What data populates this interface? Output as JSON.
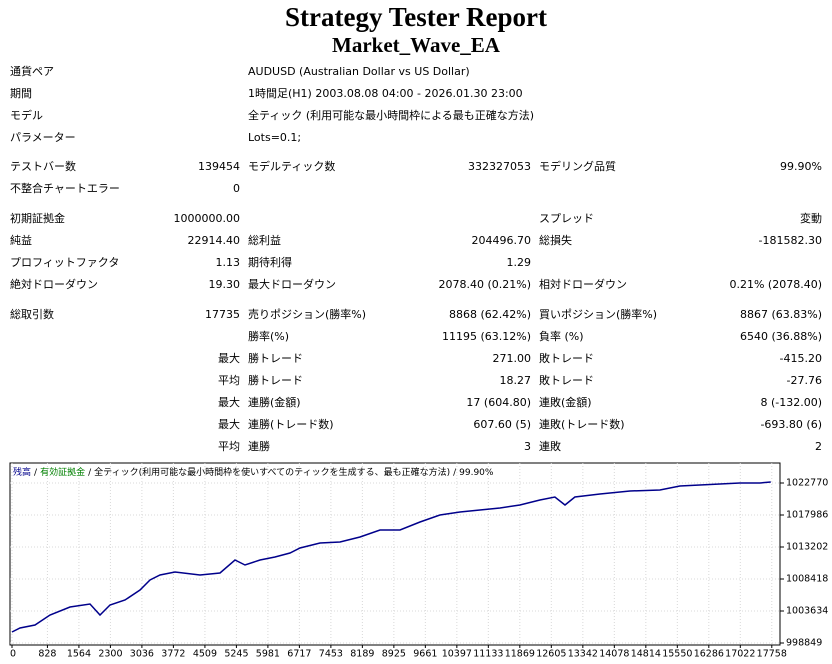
{
  "header": {
    "title": "Strategy Tester Report",
    "subtitle": "Market_Wave_EA"
  },
  "info": [
    {
      "label": "通貨ペア",
      "value": "AUDUSD (Australian Dollar vs US Dollar)"
    },
    {
      "label": "期間",
      "value": "1時間足(H1) 2003.08.08 04:00 - 2026.01.30 23:00"
    },
    {
      "label": "モデル",
      "value": "全ティック (利用可能な最小時間枠による最も正確な方法)"
    },
    {
      "label": "パラメーター",
      "value": "Lots=0.1;"
    }
  ],
  "stats": [
    [
      [
        "テストバー数",
        "139454",
        "モデルティック数",
        "332327053",
        "モデリング品質",
        "99.90%"
      ],
      [
        "不整合チャートエラー",
        "0",
        null,
        null,
        null,
        null
      ]
    ],
    [
      [
        "初期証拠金",
        "1000000.00",
        null,
        null,
        "スプレッド",
        "変動"
      ],
      [
        "純益",
        "22914.40",
        "総利益",
        "204496.70",
        "総損失",
        "-181582.30"
      ],
      [
        "プロフィットファクタ",
        "1.13",
        "期待利得",
        "1.29",
        null,
        null
      ],
      [
        "絶対ドローダウン",
        "19.30",
        "最大ドローダウン",
        "2078.40 (0.21%)",
        "相対ドローダウン",
        "0.21% (2078.40)"
      ]
    ],
    [
      [
        "総取引数",
        "17735",
        "売りポジション(勝率%)",
        "8868 (62.42%)",
        "買いポジション(勝率%)",
        "8867 (63.83%)"
      ],
      [
        null,
        null,
        "勝率(%)",
        "11195 (63.12%)",
        "負率 (%)",
        "6540 (36.88%)"
      ],
      [
        null,
        "最大",
        "勝トレード",
        "271.00",
        "敗トレード",
        "-415.20"
      ],
      [
        null,
        "平均",
        "勝トレード",
        "18.27",
        "敗トレード",
        "-27.76"
      ],
      [
        null,
        "最大",
        "連勝(金額)",
        "17 (604.80)",
        "連敗(金額)",
        "8 (-132.00)"
      ],
      [
        null,
        "最大",
        "連勝(トレード数)",
        "607.60 (5)",
        "連敗(トレード数)",
        "-693.80 (6)"
      ],
      [
        null,
        "平均",
        "連勝",
        "3",
        "連敗",
        "2"
      ]
    ]
  ],
  "chart_data": {
    "type": "line",
    "separator": "/",
    "legend_extra": [
      {
        "text": "有効証拠金",
        "color": "#008000"
      },
      {
        "text": "全ティック(利用可能な最小時間枠を使いすべてのティックを生成する、最も正確な方法)",
        "color": "#000000"
      },
      {
        "text": "99.90%",
        "color": "#000000"
      }
    ],
    "series": [
      {
        "name": "残高",
        "color": "#00008b",
        "x": [
          0,
          187,
          538,
          888,
          1356,
          1823,
          2057,
          2290,
          2641,
          2992,
          3226,
          3459,
          3810,
          4394,
          4861,
          5212,
          5446,
          5796,
          6147,
          6497,
          6731,
          7198,
          7666,
          8133,
          8600,
          9068,
          9535,
          10002,
          10470,
          10937,
          11405,
          11872,
          12339,
          12690,
          12924,
          13157,
          13742,
          14443,
          15144,
          15611,
          16078,
          16546,
          17013,
          17481,
          17735
        ],
        "values": [
          1000494,
          1001091,
          1001540,
          1003035,
          1004231,
          1004680,
          1003035,
          1004530,
          1005277,
          1006773,
          1008268,
          1009015,
          1009464,
          1009015,
          1009314,
          1011258,
          1010510,
          1011258,
          1011706,
          1012304,
          1013052,
          1013799,
          1013949,
          1014696,
          1015743,
          1015743,
          1016939,
          1017985,
          1018434,
          1018733,
          1019032,
          1019480,
          1020228,
          1020676,
          1019480,
          1020676,
          1021125,
          1021573,
          1021723,
          1022321,
          1022470,
          1022620,
          1022769,
          1022769,
          1022914
        ]
      }
    ],
    "xlim": [
      0,
      17950
    ],
    "ylim": [
      998550,
      1025760
    ],
    "xticks": [
      0,
      828,
      1564,
      2300,
      3036,
      3772,
      4509,
      5245,
      5981,
      6717,
      7453,
      8189,
      8925,
      9661,
      10397,
      11133,
      11869,
      12605,
      13342,
      14078,
      14814,
      15550,
      16286,
      17022,
      17758
    ],
    "yticks": [
      998849,
      1003634,
      1008418,
      1013202,
      1017986,
      1022770
    ],
    "grid": true
  }
}
